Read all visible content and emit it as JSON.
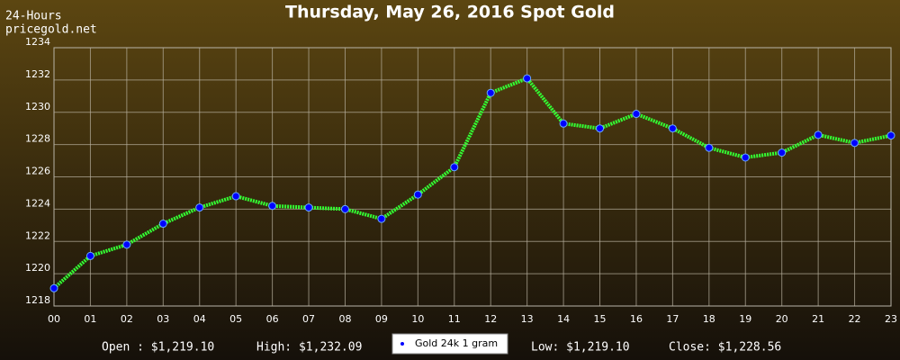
{
  "chart_data": {
    "type": "line",
    "title": "Thursday, May 26, 2016 Spot Gold",
    "subtitle": [
      "24-Hours",
      "pricegold.net"
    ],
    "categories": [
      "00",
      "01",
      "02",
      "03",
      "04",
      "05",
      "06",
      "07",
      "08",
      "09",
      "10",
      "11",
      "12",
      "13",
      "14",
      "15",
      "16",
      "17",
      "18",
      "19",
      "20",
      "21",
      "22",
      "23"
    ],
    "series": [
      {
        "name": "Gold 24k 1 gram",
        "color": "#33ff33",
        "marker_color": "#0000ff",
        "values": [
          1219.1,
          1221.1,
          1221.8,
          1223.1,
          1224.1,
          1224.8,
          1224.2,
          1224.1,
          1224.0,
          1223.4,
          1224.9,
          1226.6,
          1231.2,
          1232.1,
          1229.3,
          1229.0,
          1229.9,
          1229.0,
          1227.8,
          1227.2,
          1227.5,
          1228.6,
          1228.1,
          1228.56
        ]
      }
    ],
    "ylim": [
      1218,
      1234
    ],
    "yticks": [
      1218,
      1220,
      1222,
      1224,
      1226,
      1228,
      1230,
      1232,
      1234
    ],
    "grid": true,
    "annotations": [
      "Open : $1,219.10",
      "High: $1,232.09",
      "Low: $1,219.10",
      "Close: $1,228.56"
    ]
  }
}
